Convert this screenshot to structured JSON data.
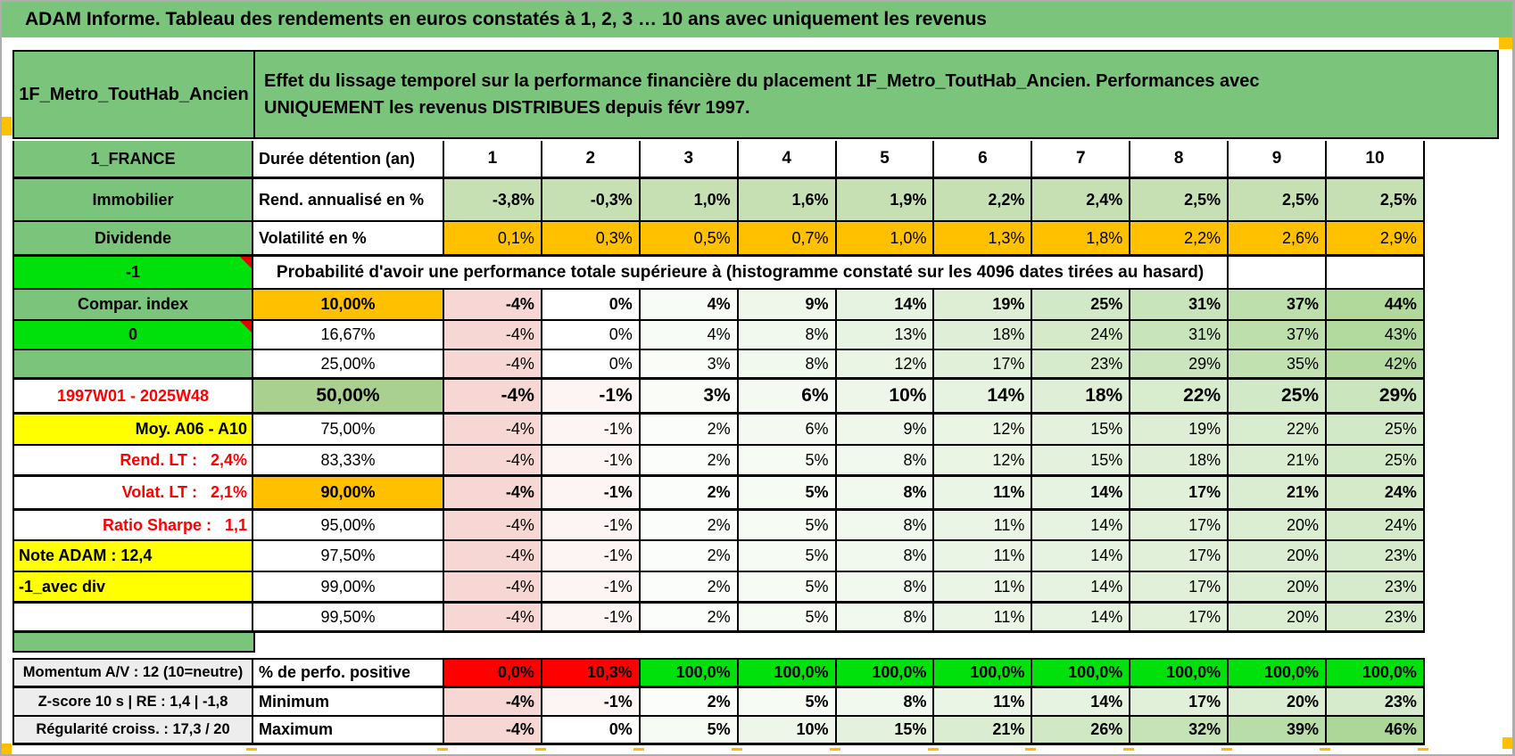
{
  "banner": {
    "title": "ADAM Informe. Tableau des rendements en euros constatés à 1, 2, 3 … 10 ans avec uniquement les revenus"
  },
  "header": {
    "product": "1F_Metro_ToutHab_Ancien",
    "description_lines": [
      "Effet du lissage temporel sur la performance financière du placement 1F_Metro_ToutHab_Ancien. Performances avec",
      "UNIQUEMENT les revenus DISTRIBUES depuis févr 1997."
    ]
  },
  "colors": {
    "green": "#7BC47C",
    "bright_green": "#00E10C",
    "light_green": "#C6E0B4",
    "mid_green": "#A9D08E",
    "orange": "#FFC000",
    "yellow": "#FFFF00",
    "red": "#FF0000",
    "gray": "#EDEDED",
    "white": "#FFFFFF",
    "banner_green": "#7BC47C",
    "text_red": "#FF0000"
  },
  "main_table": {
    "col_headers": [
      "1",
      "2",
      "3",
      "4",
      "5",
      "6",
      "7",
      "8",
      "9",
      "10"
    ],
    "rows": [
      {
        "left": {
          "text": "1_FRANCE",
          "bg": "green"
        },
        "label": {
          "text": "Durée détention (an)",
          "align": "left",
          "bold": true
        },
        "type": "colheader"
      },
      {
        "left": {
          "text": "Immobilier",
          "bg": "green"
        },
        "label": {
          "text": "Rend. annualisé en %",
          "align": "left",
          "bold": true
        },
        "values": [
          "-3,8%",
          "-0,3%",
          "1,0%",
          "1,6%",
          "1,9%",
          "2,2%",
          "2,4%",
          "2,5%",
          "2,5%",
          "2,5%"
        ],
        "cell_bg": "light_green",
        "bold": true
      },
      {
        "left": {
          "text": "Dividende",
          "bg": "green"
        },
        "label": {
          "text": "Volatilité en %",
          "align": "left",
          "bold": true
        },
        "values": [
          "0,1%",
          "0,3%",
          "0,5%",
          "0,7%",
          "1,0%",
          "1,3%",
          "1,8%",
          "2,2%",
          "2,6%",
          "2,9%"
        ],
        "cell_bg": "orange"
      },
      {
        "left": {
          "text": "-1",
          "bg": "bright_green",
          "tri": true
        },
        "type": "merged",
        "merged_text": "Probabilité d'avoir une performance totale supérieure à (histogramme constaté sur les 4096 dates tirées au hasard)",
        "empty_tail": 2
      },
      {
        "left": {
          "text": "Compar. index",
          "bg": "green"
        },
        "label": {
          "text": "10,00%",
          "bg": "orange",
          "bold": true
        },
        "values": [
          -4,
          0,
          4,
          9,
          14,
          19,
          25,
          31,
          37,
          44
        ],
        "gradient": true,
        "bold": true
      },
      {
        "left": {
          "text": "0",
          "bg": "bright_green",
          "tri": true
        },
        "label": {
          "text": "16,67%"
        },
        "values": [
          -4,
          0,
          4,
          8,
          13,
          18,
          24,
          31,
          37,
          43
        ],
        "gradient": true
      },
      {
        "left": {
          "text": "",
          "bg": "green"
        },
        "label": {
          "text": "25,00%"
        },
        "values": [
          -4,
          0,
          3,
          8,
          12,
          17,
          23,
          29,
          35,
          42
        ],
        "gradient": true
      },
      {
        "left": {
          "text": "1997W01 - 2025W48",
          "bg": "white",
          "color": "red"
        },
        "label": {
          "text": "50,00%",
          "bg": "mid_green",
          "bold": true,
          "big": true
        },
        "values": [
          -4,
          -1,
          3,
          6,
          10,
          14,
          18,
          22,
          25,
          29
        ],
        "gradient": true,
        "bold": true,
        "big": true
      },
      {
        "left": {
          "text": "Moy. A06 - A10",
          "bg": "yellow",
          "align": "right"
        },
        "label": {
          "text": "75,00%"
        },
        "values": [
          -4,
          -1,
          2,
          6,
          9,
          12,
          15,
          19,
          22,
          25
        ],
        "gradient": true
      },
      {
        "left": {
          "text": "Rend. LT :   2,4%",
          "bg": "white",
          "color": "red",
          "align": "right"
        },
        "label": {
          "text": "83,33%"
        },
        "values": [
          -4,
          -1,
          2,
          5,
          8,
          12,
          15,
          18,
          21,
          25
        ],
        "gradient": true
      },
      {
        "left": {
          "text": "Volat. LT :   2,1%",
          "bg": "white",
          "color": "red",
          "align": "right"
        },
        "label": {
          "text": "90,00%",
          "bg": "orange",
          "bold": true
        },
        "values": [
          -4,
          -1,
          2,
          5,
          8,
          11,
          14,
          17,
          21,
          24
        ],
        "gradient": true,
        "bold": true
      },
      {
        "left": {
          "text": "Ratio Sharpe :   1,1",
          "bg": "white",
          "color": "red",
          "align": "right"
        },
        "label": {
          "text": "95,00%"
        },
        "values": [
          -4,
          -1,
          2,
          5,
          8,
          11,
          14,
          17,
          20,
          24
        ],
        "gradient": true
      },
      {
        "left": {
          "text": "Note ADAM : 12,4",
          "bg": "yellow",
          "align": "left"
        },
        "label": {
          "text": "97,50%"
        },
        "values": [
          -4,
          -1,
          2,
          5,
          8,
          11,
          14,
          17,
          20,
          23
        ],
        "gradient": true
      },
      {
        "left": {
          "text": "-1_avec div",
          "bg": "yellow",
          "align": "left"
        },
        "label": {
          "text": "99,00%"
        },
        "values": [
          -4,
          -1,
          2,
          5,
          8,
          11,
          14,
          17,
          20,
          23
        ],
        "gradient": true
      },
      {
        "left": {
          "text": "",
          "bg": "white"
        },
        "label": {
          "text": "99,50%"
        },
        "values": [
          -4,
          -1,
          2,
          5,
          8,
          11,
          14,
          17,
          20,
          23
        ],
        "gradient": true
      }
    ]
  },
  "bottom_table": {
    "rows": [
      {
        "left": {
          "text": "Momentum A/V : 12 (10=neutre)",
          "bg": "gray"
        },
        "label": {
          "text": "% de perfo. positive",
          "bold": true,
          "align": "left"
        },
        "values": [
          "0,0%",
          "10,3%",
          "100,0%",
          "100,0%",
          "100,0%",
          "100,0%",
          "100,0%",
          "100,0%",
          "100,0%",
          "100,0%"
        ],
        "cell_bgs": [
          "red",
          "red",
          "bright_green",
          "bright_green",
          "bright_green",
          "bright_green",
          "bright_green",
          "bright_green",
          "bright_green",
          "bright_green"
        ],
        "bold": true
      },
      {
        "left": {
          "text": "Z-score 10 s | RE : 1,4 | -1,8",
          "bg": "gray"
        },
        "label": {
          "text": "Minimum",
          "bold": true,
          "align": "left"
        },
        "values": [
          -4,
          -1,
          2,
          5,
          8,
          11,
          14,
          17,
          20,
          23
        ],
        "gradient": true,
        "bold": true
      },
      {
        "left": {
          "text": "Régularité croiss. : 17,3 / 20",
          "bg": "gray"
        },
        "label": {
          "text": "Maximum",
          "bold": true,
          "align": "left"
        },
        "values": [
          -4,
          0,
          5,
          10,
          15,
          21,
          26,
          32,
          39,
          46
        ],
        "gradient": true,
        "bold": true
      }
    ]
  }
}
